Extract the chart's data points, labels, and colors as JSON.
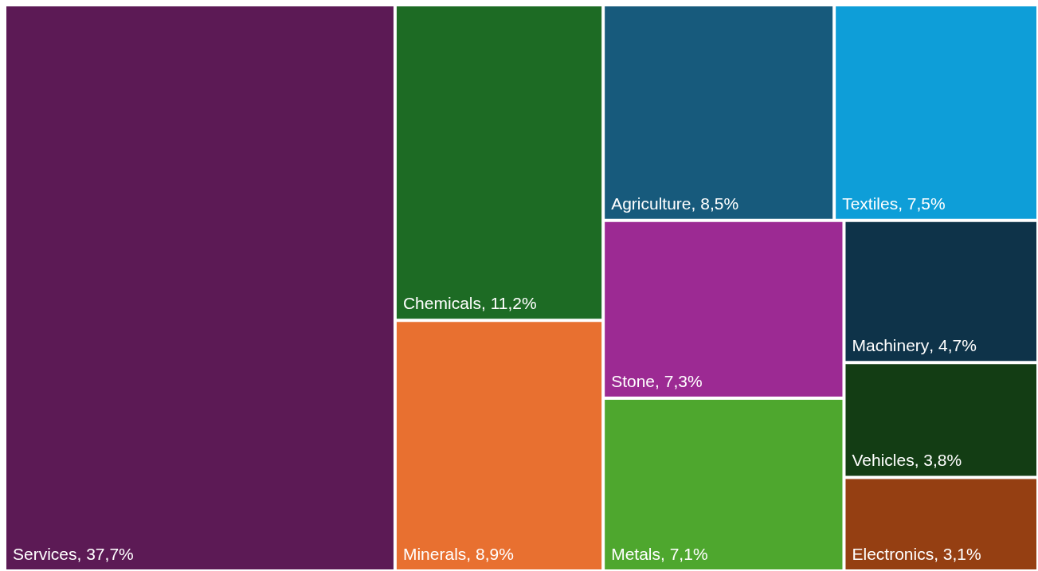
{
  "chart_data": {
    "type": "other",
    "categories": [
      "Services",
      "Chemicals",
      "Minerals",
      "Agriculture",
      "Textiles",
      "Stone",
      "Metals",
      "Machinery",
      "Vehicles",
      "Electronics"
    ],
    "values": [
      37.7,
      11.2,
      8.9,
      8.5,
      7.5,
      7.3,
      7.1,
      4.7,
      3.8,
      3.1
    ],
    "value_labels": [
      ", 37,7%",
      ", 11,2%",
      ", 8,9%",
      ", 8,5%",
      ", 7,5%",
      ", 7,3%",
      ", 7,1%",
      ", 4,7%",
      ", 3,8%",
      ", 3,1%"
    ],
    "colors": [
      "#5c1a55",
      "#1d6b24",
      "#e87030",
      "#175a7c",
      "#0e9ed8",
      "#9c2a93",
      "#4ea72e",
      "#0e3349",
      "#133d14",
      "#953f12"
    ]
  }
}
